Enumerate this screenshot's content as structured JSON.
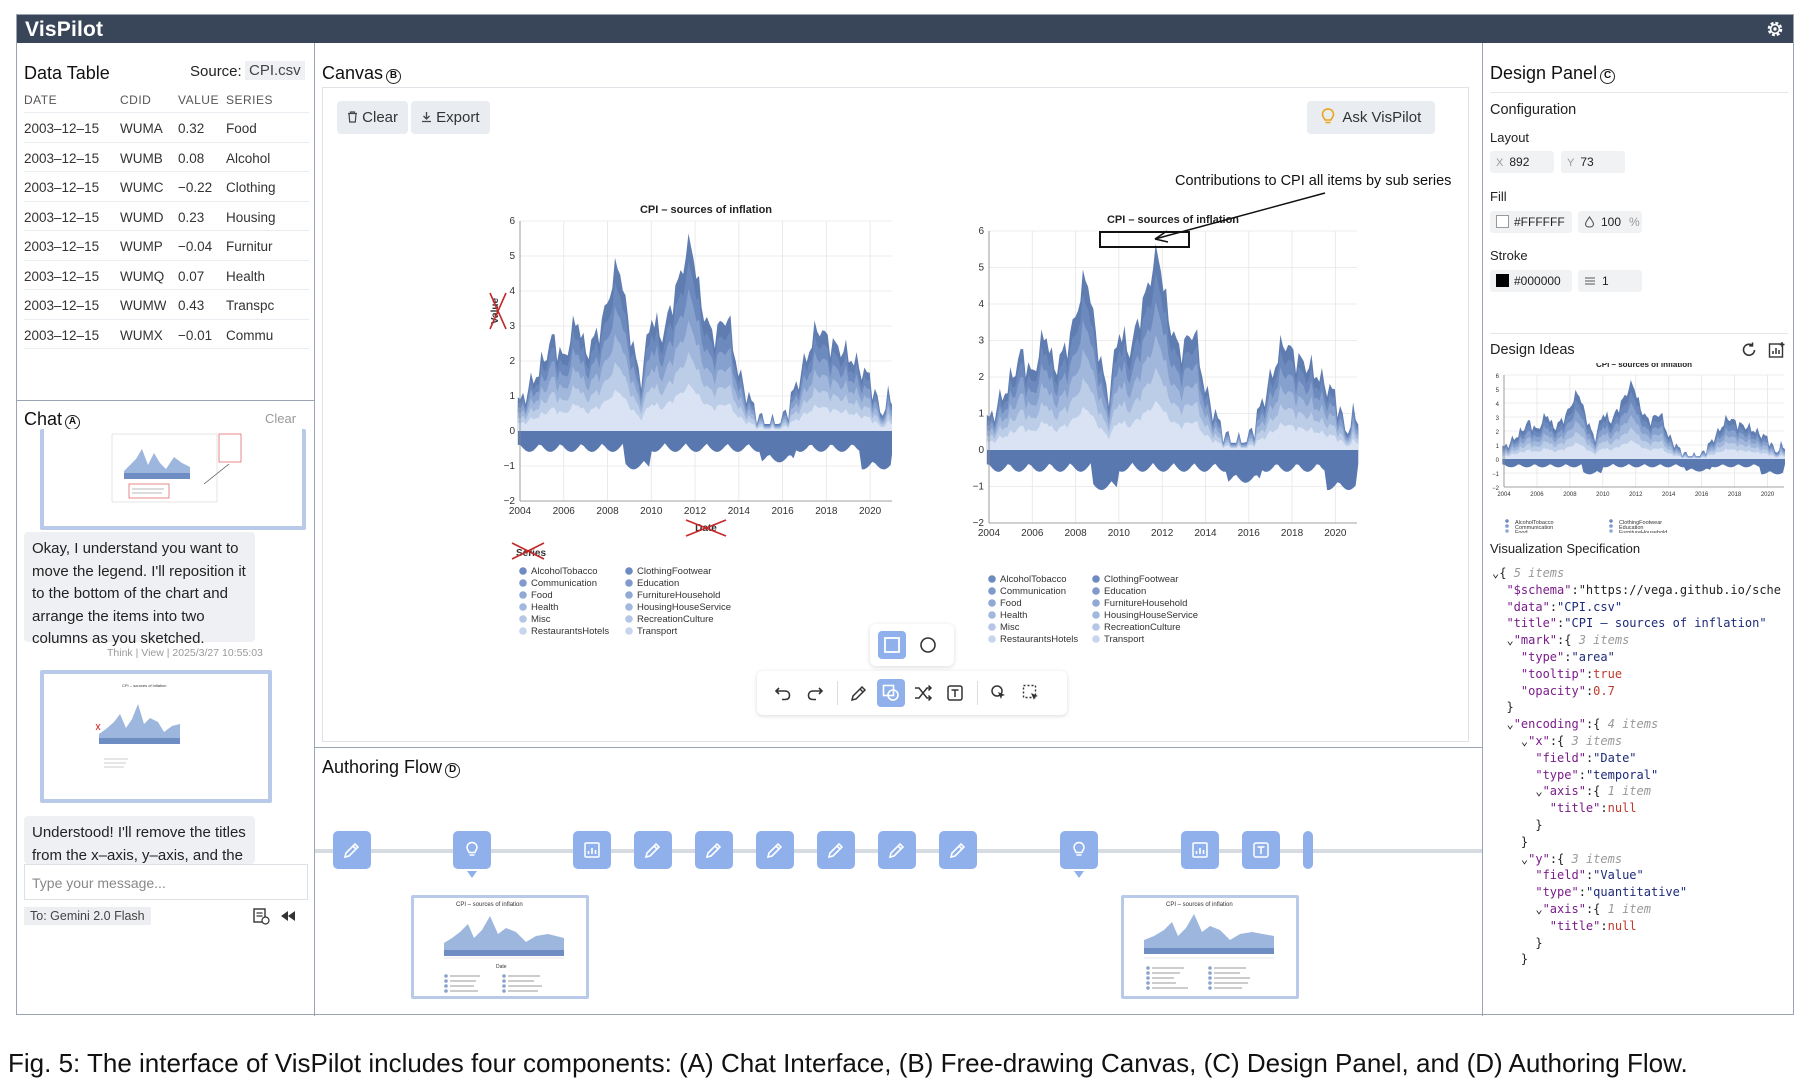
{
  "app": {
    "title": "VisPilot"
  },
  "data_table": {
    "title": "Data Table",
    "source_label": "Source:",
    "source_file": "CPI.csv",
    "columns": [
      "DATE",
      "CDID",
      "VALUE",
      "SERIES"
    ],
    "rows": [
      [
        "2003–12–15",
        "WUMA",
        "0.32",
        "Food"
      ],
      [
        "2003–12–15",
        "WUMB",
        "0.08",
        "Alcohol"
      ],
      [
        "2003–12–15",
        "WUMC",
        "−0.22",
        "Clothing"
      ],
      [
        "2003–12–15",
        "WUMD",
        "0.23",
        "Housing"
      ],
      [
        "2003–12–15",
        "WUMP",
        "−0.04",
        "Furnitur"
      ],
      [
        "2003–12–15",
        "WUMQ",
        "0.07",
        "Health"
      ],
      [
        "2003–12–15",
        "WUMW",
        "0.43",
        "Transpc"
      ],
      [
        "2003–12–15",
        "WUMX",
        "−0.01",
        "Commu"
      ]
    ]
  },
  "chat": {
    "title": "Chat",
    "badge": "A",
    "clear_label": "Clear",
    "message1": "Okay, I understand you want to move the legend. I'll reposition it to the bottom of the chart and arrange  the items into two columns as you sketched.",
    "meta_think": "Think",
    "meta_view": "View",
    "meta_time": "2025/3/27 10:55:03",
    "message2": "Understood! I'll remove the titles from the x–axis, y–axis, and the",
    "input_placeholder": "Type your message...",
    "model_label": "To: Gemini 2.0 Flash"
  },
  "canvas": {
    "title": "Canvas",
    "badge": "B",
    "clear_label": "Clear",
    "export_label": "Export",
    "ask_label": "Ask VisPilot",
    "annotation": "Contributions to CPI all items by sub series"
  },
  "authoring_flow": {
    "title": "Authoring Flow",
    "badge": "D"
  },
  "design_panel": {
    "title": "Design Panel",
    "badge": "C",
    "configuration_label": "Configuration",
    "layout_label": "Layout",
    "x_label": "X",
    "x_value": "892",
    "y_label": "Y",
    "y_value": "73",
    "fill_label": "Fill",
    "fill_value": "#FFFFFF",
    "opacity_value": "100",
    "opacity_unit": "%",
    "stroke_label": "Stroke",
    "stroke_value": "#000000",
    "stroke_width": "1",
    "ideas_label": "Design Ideas",
    "spec_label": "Visualization Specification",
    "spec_lines": [
      "⌄{ 5 items",
      "  \"$schema\":\"https://vega.github.io/sche",
      "  \"data\":\"CPI.csv\"",
      "  \"title\":\"CPI – sources of inflation\"",
      "  ⌄\"mark\":{ 3 items",
      "    \"type\":\"area\"",
      "    \"tooltip\":true",
      "    \"opacity\":0.7",
      "  }",
      "  ⌄\"encoding\":{ 4 items",
      "    ⌄\"x\":{ 3 items",
      "      \"field\":\"Date\"",
      "      \"type\":\"temporal\"",
      "      ⌄\"axis\":{ 1 item",
      "        \"title\":null",
      "      }",
      "    }",
      "    ⌄\"y\":{ 3 items",
      "      \"field\":\"Value\"",
      "      \"type\":\"quantitative\"",
      "      ⌄\"axis\":{ 1 item",
      "        \"title\":null",
      "      }",
      "    }"
    ]
  },
  "chart": {
    "title": "CPI – sources of inflation",
    "ylabel": "Value",
    "xlabel": "Date",
    "legend_title": "Series",
    "y_ticks": [
      "−2",
      "−1",
      "0",
      "1",
      "2",
      "3",
      "4",
      "5",
      "6"
    ],
    "x_ticks": [
      "2004",
      "2006",
      "2008",
      "2010",
      "2012",
      "2014",
      "2016",
      "2018",
      "2020"
    ],
    "legend_left": [
      "AlcoholTobacco",
      "Communication",
      "Food",
      "Health",
      "Misc",
      "RestaurantsHotels"
    ],
    "legend_right": [
      "ClothingFootwear",
      "Education",
      "FurnitureHousehold",
      "HousingHouseService",
      "RecreationCulture",
      "Transport"
    ]
  },
  "caption": "Fig. 5: The interface of VisPilot includes four components: (A) Chat Interface, (B) Free-drawing Canvas, (C) Design Panel, and (D) Authoring Flow.",
  "colors": {
    "titlebar": "#394558",
    "accent": "#8fb0ea",
    "area_dark": "#4f6fa8",
    "area_light": "#dbe6f5"
  }
}
